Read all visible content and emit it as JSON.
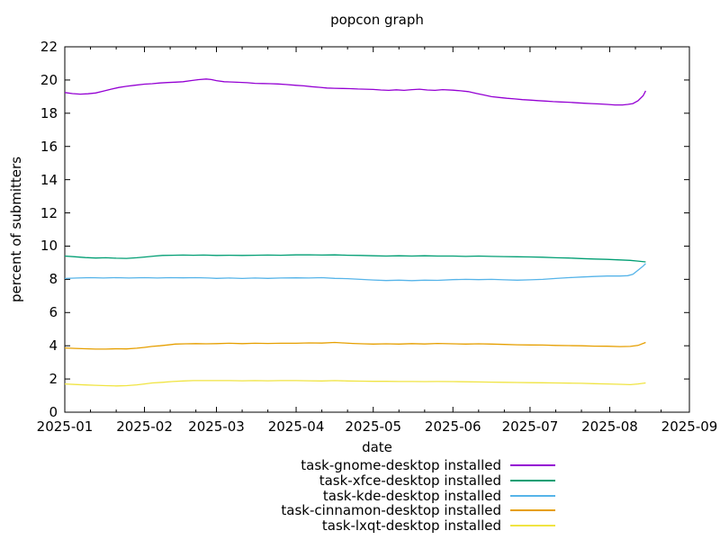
{
  "title": "popcon graph",
  "x_axis": {
    "label": "date",
    "ticks": [
      "2025-01",
      "2025-02",
      "2025-03",
      "2025-04",
      "2025-05",
      "2025-06",
      "2025-07",
      "2025-08",
      "2025-09"
    ],
    "tick_days": [
      0,
      31,
      59,
      90,
      120,
      151,
      181,
      212,
      243
    ],
    "minor_tick_days": [
      10,
      20,
      41,
      51,
      69,
      79,
      100,
      110,
      130,
      140,
      161,
      171,
      191,
      201,
      222,
      232
    ]
  },
  "y_axis": {
    "label": "percent of submitters",
    "ticks": [
      "0",
      "2",
      "4",
      "6",
      "8",
      "10",
      "12",
      "14",
      "16",
      "18",
      "20",
      "22"
    ]
  },
  "colors": {
    "axis": "#000000",
    "background": "#ffffff"
  },
  "chart_data": {
    "type": "line",
    "title": "popcon graph",
    "xlabel": "date",
    "ylabel": "percent of submitters",
    "xlim": [
      "2025-01",
      "2025-09"
    ],
    "ylim": [
      0,
      22
    ],
    "x_total_days": 243,
    "x_unit": "days since 2025-01-01",
    "grid": false,
    "legend_position": "below plot, right-aligned text with line samples",
    "series": [
      {
        "name": "task-gnome-desktop installed",
        "color": "#9400D3",
        "points": [
          [
            0,
            19.25
          ],
          [
            3,
            19.18
          ],
          [
            6,
            19.15
          ],
          [
            9,
            19.17
          ],
          [
            12,
            19.22
          ],
          [
            15,
            19.33
          ],
          [
            18,
            19.45
          ],
          [
            21,
            19.55
          ],
          [
            24,
            19.62
          ],
          [
            27,
            19.68
          ],
          [
            31,
            19.75
          ],
          [
            34,
            19.78
          ],
          [
            37,
            19.82
          ],
          [
            40,
            19.85
          ],
          [
            43,
            19.87
          ],
          [
            46,
            19.9
          ],
          [
            49,
            19.96
          ],
          [
            52,
            20.02
          ],
          [
            55,
            20.06
          ],
          [
            57,
            20.03
          ],
          [
            59,
            19.96
          ],
          [
            62,
            19.9
          ],
          [
            65,
            19.88
          ],
          [
            68,
            19.86
          ],
          [
            71,
            19.84
          ],
          [
            74,
            19.8
          ],
          [
            77,
            19.79
          ],
          [
            80,
            19.78
          ],
          [
            83,
            19.76
          ],
          [
            86,
            19.73
          ],
          [
            90,
            19.68
          ],
          [
            93,
            19.65
          ],
          [
            96,
            19.6
          ],
          [
            99,
            19.56
          ],
          [
            102,
            19.52
          ],
          [
            105,
            19.5
          ],
          [
            108,
            19.49
          ],
          [
            111,
            19.48
          ],
          [
            114,
            19.46
          ],
          [
            117,
            19.45
          ],
          [
            120,
            19.43
          ],
          [
            123,
            19.4
          ],
          [
            126,
            19.38
          ],
          [
            129,
            19.41
          ],
          [
            132,
            19.38
          ],
          [
            135,
            19.42
          ],
          [
            138,
            19.45
          ],
          [
            141,
            19.4
          ],
          [
            144,
            19.38
          ],
          [
            147,
            19.42
          ],
          [
            151,
            19.39
          ],
          [
            154,
            19.35
          ],
          [
            157,
            19.3
          ],
          [
            160,
            19.2
          ],
          [
            163,
            19.1
          ],
          [
            166,
            19.0
          ],
          [
            169,
            18.95
          ],
          [
            172,
            18.9
          ],
          [
            175,
            18.86
          ],
          [
            178,
            18.82
          ],
          [
            181,
            18.79
          ],
          [
            184,
            18.76
          ],
          [
            187,
            18.73
          ],
          [
            190,
            18.7
          ],
          [
            193,
            18.68
          ],
          [
            196,
            18.66
          ],
          [
            199,
            18.63
          ],
          [
            202,
            18.6
          ],
          [
            205,
            18.58
          ],
          [
            208,
            18.56
          ],
          [
            211,
            18.53
          ],
          [
            214,
            18.5
          ],
          [
            217,
            18.5
          ],
          [
            219,
            18.53
          ],
          [
            221,
            18.58
          ],
          [
            223,
            18.75
          ],
          [
            225,
            19.05
          ],
          [
            226,
            19.35
          ]
        ]
      },
      {
        "name": "task-xfce-desktop installed",
        "color": "#009E73",
        "points": [
          [
            0,
            9.4
          ],
          [
            4,
            9.36
          ],
          [
            8,
            9.31
          ],
          [
            12,
            9.28
          ],
          [
            16,
            9.3
          ],
          [
            20,
            9.27
          ],
          [
            24,
            9.26
          ],
          [
            28,
            9.3
          ],
          [
            31,
            9.34
          ],
          [
            35,
            9.4
          ],
          [
            38,
            9.44
          ],
          [
            42,
            9.45
          ],
          [
            46,
            9.46
          ],
          [
            50,
            9.45
          ],
          [
            54,
            9.46
          ],
          [
            59,
            9.44
          ],
          [
            64,
            9.45
          ],
          [
            69,
            9.44
          ],
          [
            74,
            9.45
          ],
          [
            79,
            9.46
          ],
          [
            84,
            9.45
          ],
          [
            90,
            9.47
          ],
          [
            95,
            9.48
          ],
          [
            100,
            9.46
          ],
          [
            105,
            9.47
          ],
          [
            110,
            9.45
          ],
          [
            115,
            9.44
          ],
          [
            120,
            9.42
          ],
          [
            125,
            9.4
          ],
          [
            130,
            9.42
          ],
          [
            135,
            9.4
          ],
          [
            140,
            9.42
          ],
          [
            145,
            9.4
          ],
          [
            151,
            9.4
          ],
          [
            156,
            9.38
          ],
          [
            161,
            9.4
          ],
          [
            166,
            9.38
          ],
          [
            171,
            9.37
          ],
          [
            176,
            9.36
          ],
          [
            181,
            9.35
          ],
          [
            186,
            9.33
          ],
          [
            191,
            9.3
          ],
          [
            196,
            9.28
          ],
          [
            201,
            9.25
          ],
          [
            206,
            9.22
          ],
          [
            211,
            9.2
          ],
          [
            216,
            9.17
          ],
          [
            220,
            9.14
          ],
          [
            223,
            9.1
          ],
          [
            226,
            9.05
          ]
        ]
      },
      {
        "name": "task-kde-desktop installed",
        "color": "#56B4E9",
        "points": [
          [
            0,
            8.05
          ],
          [
            5,
            8.08
          ],
          [
            10,
            8.1
          ],
          [
            15,
            8.08
          ],
          [
            20,
            8.1
          ],
          [
            25,
            8.08
          ],
          [
            31,
            8.1
          ],
          [
            36,
            8.08
          ],
          [
            41,
            8.1
          ],
          [
            46,
            8.09
          ],
          [
            51,
            8.1
          ],
          [
            56,
            8.08
          ],
          [
            59,
            8.06
          ],
          [
            64,
            8.08
          ],
          [
            69,
            8.05
          ],
          [
            74,
            8.08
          ],
          [
            79,
            8.06
          ],
          [
            84,
            8.08
          ],
          [
            90,
            8.09
          ],
          [
            95,
            8.08
          ],
          [
            100,
            8.1
          ],
          [
            105,
            8.06
          ],
          [
            110,
            8.04
          ],
          [
            115,
            8.0
          ],
          [
            120,
            7.96
          ],
          [
            125,
            7.93
          ],
          [
            130,
            7.95
          ],
          [
            135,
            7.92
          ],
          [
            140,
            7.95
          ],
          [
            145,
            7.94
          ],
          [
            151,
            7.98
          ],
          [
            156,
            8.0
          ],
          [
            161,
            7.98
          ],
          [
            166,
            8.0
          ],
          [
            171,
            7.97
          ],
          [
            176,
            7.95
          ],
          [
            181,
            7.97
          ],
          [
            186,
            8.0
          ],
          [
            191,
            8.05
          ],
          [
            196,
            8.1
          ],
          [
            201,
            8.14
          ],
          [
            206,
            8.17
          ],
          [
            211,
            8.2
          ],
          [
            216,
            8.2
          ],
          [
            219,
            8.22
          ],
          [
            221,
            8.3
          ],
          [
            223,
            8.55
          ],
          [
            225,
            8.8
          ],
          [
            226,
            8.95
          ]
        ]
      },
      {
        "name": "task-cinnamon-desktop installed",
        "color": "#E69F00",
        "points": [
          [
            0,
            3.87
          ],
          [
            4,
            3.84
          ],
          [
            8,
            3.82
          ],
          [
            12,
            3.8
          ],
          [
            16,
            3.8
          ],
          [
            20,
            3.82
          ],
          [
            24,
            3.81
          ],
          [
            28,
            3.85
          ],
          [
            31,
            3.9
          ],
          [
            34,
            3.96
          ],
          [
            37,
            4.0
          ],
          [
            40,
            4.05
          ],
          [
            43,
            4.1
          ],
          [
            47,
            4.12
          ],
          [
            51,
            4.13
          ],
          [
            55,
            4.12
          ],
          [
            59,
            4.13
          ],
          [
            64,
            4.15
          ],
          [
            69,
            4.13
          ],
          [
            74,
            4.15
          ],
          [
            79,
            4.14
          ],
          [
            84,
            4.15
          ],
          [
            90,
            4.15
          ],
          [
            95,
            4.17
          ],
          [
            100,
            4.16
          ],
          [
            105,
            4.2
          ],
          [
            108,
            4.17
          ],
          [
            112,
            4.14
          ],
          [
            116,
            4.12
          ],
          [
            120,
            4.1
          ],
          [
            125,
            4.12
          ],
          [
            130,
            4.1
          ],
          [
            135,
            4.13
          ],
          [
            140,
            4.11
          ],
          [
            145,
            4.14
          ],
          [
            151,
            4.12
          ],
          [
            156,
            4.1
          ],
          [
            161,
            4.12
          ],
          [
            166,
            4.1
          ],
          [
            171,
            4.08
          ],
          [
            176,
            4.06
          ],
          [
            181,
            4.05
          ],
          [
            186,
            4.04
          ],
          [
            191,
            4.02
          ],
          [
            196,
            4.01
          ],
          [
            201,
            4.0
          ],
          [
            206,
            3.98
          ],
          [
            211,
            3.97
          ],
          [
            216,
            3.95
          ],
          [
            220,
            3.96
          ],
          [
            223,
            4.02
          ],
          [
            226,
            4.2
          ]
        ]
      },
      {
        "name": "task-lxqt-desktop installed",
        "color": "#F0E442",
        "points": [
          [
            0,
            1.7
          ],
          [
            4,
            1.67
          ],
          [
            8,
            1.64
          ],
          [
            12,
            1.62
          ],
          [
            16,
            1.6
          ],
          [
            20,
            1.58
          ],
          [
            24,
            1.6
          ],
          [
            28,
            1.65
          ],
          [
            31,
            1.7
          ],
          [
            34,
            1.76
          ],
          [
            38,
            1.8
          ],
          [
            42,
            1.85
          ],
          [
            46,
            1.88
          ],
          [
            50,
            1.9
          ],
          [
            55,
            1.9
          ],
          [
            59,
            1.9
          ],
          [
            64,
            1.9
          ],
          [
            69,
            1.89
          ],
          [
            74,
            1.9
          ],
          [
            79,
            1.89
          ],
          [
            84,
            1.9
          ],
          [
            90,
            1.9
          ],
          [
            95,
            1.89
          ],
          [
            100,
            1.88
          ],
          [
            105,
            1.9
          ],
          [
            110,
            1.88
          ],
          [
            115,
            1.87
          ],
          [
            120,
            1.86
          ],
          [
            125,
            1.86
          ],
          [
            130,
            1.85
          ],
          [
            135,
            1.85
          ],
          [
            140,
            1.84
          ],
          [
            145,
            1.85
          ],
          [
            151,
            1.84
          ],
          [
            156,
            1.83
          ],
          [
            161,
            1.82
          ],
          [
            166,
            1.81
          ],
          [
            171,
            1.8
          ],
          [
            176,
            1.79
          ],
          [
            181,
            1.78
          ],
          [
            186,
            1.77
          ],
          [
            191,
            1.76
          ],
          [
            196,
            1.75
          ],
          [
            201,
            1.74
          ],
          [
            206,
            1.72
          ],
          [
            211,
            1.7
          ],
          [
            216,
            1.68
          ],
          [
            220,
            1.66
          ],
          [
            223,
            1.7
          ],
          [
            226,
            1.76
          ]
        ]
      }
    ]
  }
}
